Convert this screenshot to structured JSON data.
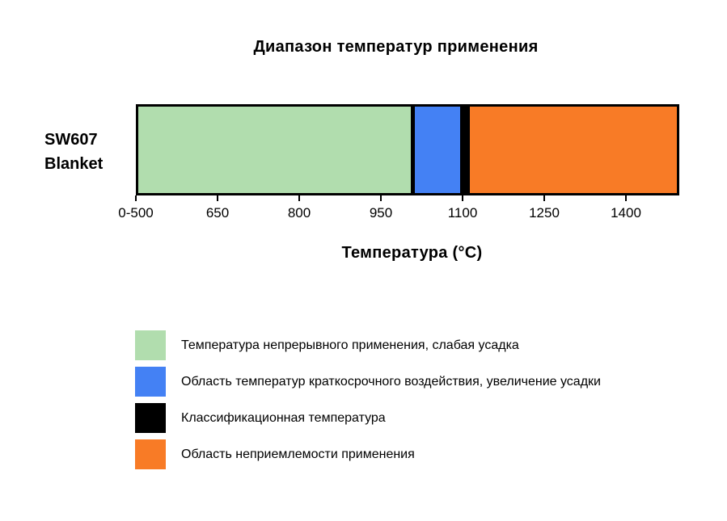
{
  "chart_data": {
    "type": "bar",
    "variant": "horizontal-stacked-range",
    "title": "Диапазон температур применения",
    "xlabel": "Температура (°C)",
    "category": "SW607 Blanket",
    "category_display": "SW607\nBlanket",
    "x_ticks": [
      "0-500",
      "650",
      "800",
      "950",
      "1100",
      "1250",
      "1400"
    ],
    "x_tick_values": [
      500,
      650,
      800,
      950,
      1100,
      1250,
      1400
    ],
    "x_tick_step": 150,
    "xlim": [
      0,
      1500
    ],
    "grid": false,
    "legend_position": "bottom-left",
    "segments": [
      {
        "kind": "range",
        "label": "Температура непрерывного применения, слабая усадка",
        "color": "#b1ddae",
        "from": 0,
        "to": 1000
      },
      {
        "kind": "range",
        "label": "Область температур краткосрочного воздействия, увеличение усадки",
        "color": "#4481f4",
        "from": 1000,
        "to": 1100
      },
      {
        "kind": "marker",
        "label": "Классификационная температура",
        "color": "#000000",
        "at": 1100
      },
      {
        "kind": "range",
        "label": "Область неприемлемости применения",
        "color": "#f87b26",
        "from": 1100,
        "to": 1500
      }
    ]
  }
}
